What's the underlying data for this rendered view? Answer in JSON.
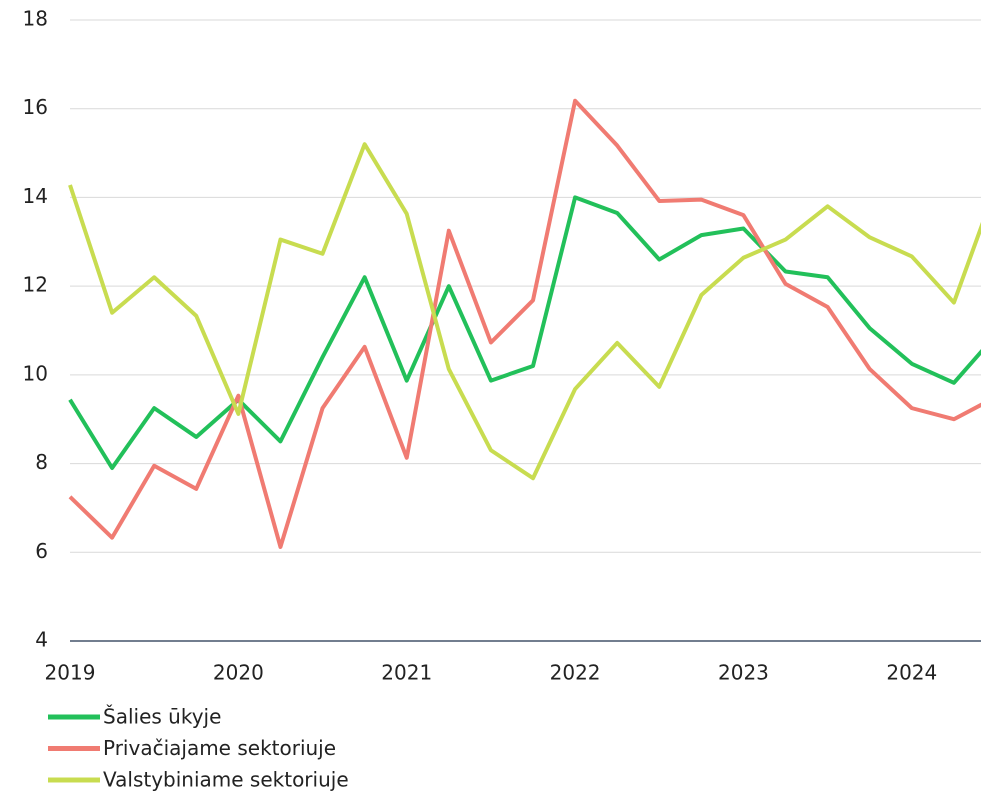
{
  "chart_data": {
    "type": "line",
    "x": [
      2019,
      2019.25,
      2019.5,
      2019.75,
      2020,
      2020.25,
      2020.5,
      2020.75,
      2021,
      2021.25,
      2021.5,
      2021.75,
      2022,
      2022.25,
      2022.5,
      2022.75,
      2023,
      2023.25,
      2023.5,
      2023.75,
      2024,
      2024.25,
      2024.5
    ],
    "series": [
      {
        "name": "Šalies ūkyje",
        "color": "#22c05a",
        "values": [
          9.44,
          7.9,
          9.25,
          8.6,
          9.44,
          8.5,
          10.4,
          12.2,
          9.87,
          12.0,
          9.87,
          10.2,
          14.0,
          13.65,
          12.6,
          13.15,
          13.3,
          12.33,
          12.2,
          11.05,
          10.25,
          9.82,
          10.9
        ]
      },
      {
        "name": "Privačiajame sektoriuje",
        "color": "#f07b72",
        "values": [
          7.25,
          6.33,
          7.95,
          7.43,
          9.53,
          6.12,
          9.25,
          10.63,
          8.13,
          13.25,
          10.73,
          11.68,
          16.18,
          15.17,
          13.92,
          13.95,
          13.6,
          12.05,
          11.53,
          10.13,
          9.25,
          9.0,
          9.5
        ]
      },
      {
        "name": "Valstybiniame sektoriuje",
        "color": "#c8dc50",
        "values": [
          14.28,
          11.4,
          12.2,
          11.33,
          9.12,
          13.05,
          12.73,
          15.2,
          13.63,
          10.13,
          8.3,
          7.67,
          9.68,
          10.72,
          9.73,
          11.8,
          12.64,
          13.05,
          13.8,
          13.1,
          12.67,
          11.63,
          14.25
        ]
      }
    ],
    "xlim": [
      2019,
      2024.5
    ],
    "xticks": [
      2019,
      2020,
      2021,
      2022,
      2023,
      2024
    ],
    "ylim": [
      4,
      18
    ],
    "yticks": [
      4,
      6,
      8,
      10,
      12,
      14,
      16,
      18
    ],
    "grid": true,
    "legend": "bottom-left"
  }
}
